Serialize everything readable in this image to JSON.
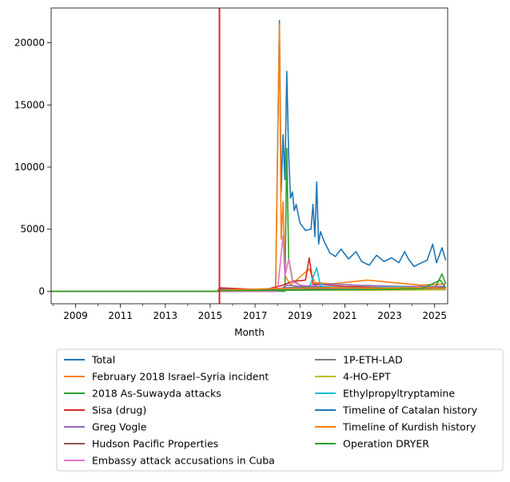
{
  "chart_data": {
    "type": "line",
    "xlabel": "Month",
    "ylabel": "",
    "xlim": [
      "2007-12-01",
      "2025-08-01"
    ],
    "ylim": [
      -1000,
      22800
    ],
    "x_ticks": [
      {
        "label": "2009",
        "date": "2009-01-01"
      },
      {
        "label": "2011",
        "date": "2011-01-01"
      },
      {
        "label": "2013",
        "date": "2013-01-01"
      },
      {
        "label": "2015",
        "date": "2015-01-01"
      },
      {
        "label": "2017",
        "date": "2017-01-01"
      },
      {
        "label": "2019",
        "date": "2019-01-01"
      },
      {
        "label": "2021",
        "date": "2021-01-01"
      },
      {
        "label": "2023",
        "date": "2023-01-01"
      },
      {
        "label": "2025",
        "date": "2025-01-01"
      }
    ],
    "y_ticks": [
      {
        "label": "0",
        "value": 0
      },
      {
        "label": "5000",
        "value": 5000
      },
      {
        "label": "10000",
        "value": 10000
      },
      {
        "label": "15000",
        "value": 15000
      },
      {
        "label": "20000",
        "value": 20000
      }
    ],
    "vline": {
      "date": "2015-06-01",
      "color": "#d62728"
    },
    "legend_position": "below",
    "series": [
      {
        "name": "Total",
        "color": "#1f77b4",
        "points": [
          [
            "2007-12-01",
            0
          ],
          [
            "2015-05-01",
            0
          ],
          [
            "2015-06-01",
            250
          ],
          [
            "2016-06-01",
            100
          ],
          [
            "2017-12-01",
            60
          ],
          [
            "2018-02-01",
            21800
          ],
          [
            "2018-03-01",
            8000
          ],
          [
            "2018-04-01",
            12600
          ],
          [
            "2018-05-01",
            9000
          ],
          [
            "2018-06-01",
            17700
          ],
          [
            "2018-07-01",
            11000
          ],
          [
            "2018-08-01",
            7500
          ],
          [
            "2018-09-01",
            8000
          ],
          [
            "2018-10-01",
            6500
          ],
          [
            "2018-11-01",
            7000
          ],
          [
            "2019-01-01",
            5500
          ],
          [
            "2019-04-01",
            4900
          ],
          [
            "2019-07-01",
            5000
          ],
          [
            "2019-08-01",
            7000
          ],
          [
            "2019-09-01",
            4400
          ],
          [
            "2019-10-01",
            8800
          ],
          [
            "2019-11-01",
            3800
          ],
          [
            "2019-12-01",
            4800
          ],
          [
            "2020-02-01",
            4000
          ],
          [
            "2020-05-01",
            3100
          ],
          [
            "2020-08-01",
            2800
          ],
          [
            "2020-11-01",
            3400
          ],
          [
            "2021-03-01",
            2600
          ],
          [
            "2021-07-01",
            3200
          ],
          [
            "2021-10-01",
            2400
          ],
          [
            "2022-02-01",
            2100
          ],
          [
            "2022-06-01",
            2900
          ],
          [
            "2022-10-01",
            2400
          ],
          [
            "2023-02-01",
            2700
          ],
          [
            "2023-06-01",
            2300
          ],
          [
            "2023-09-01",
            3200
          ],
          [
            "2023-11-01",
            2600
          ],
          [
            "2024-02-01",
            2000
          ],
          [
            "2024-06-01",
            2300
          ],
          [
            "2024-09-01",
            2500
          ],
          [
            "2024-12-01",
            3800
          ],
          [
            "2025-02-01",
            2300
          ],
          [
            "2025-05-01",
            3500
          ],
          [
            "2025-07-01",
            2500
          ]
        ]
      },
      {
        "name": "February 2018 Israel–Syria incident",
        "color": "#ff7f0e",
        "points": [
          [
            "2007-12-01",
            0
          ],
          [
            "2017-12-01",
            0
          ],
          [
            "2018-02-01",
            21500
          ],
          [
            "2018-03-01",
            4200
          ],
          [
            "2018-04-01",
            7200
          ],
          [
            "2018-05-01",
            1300
          ],
          [
            "2018-08-01",
            500
          ],
          [
            "2019-06-01",
            1800
          ],
          [
            "2019-09-01",
            700
          ],
          [
            "2020-06-01",
            600
          ],
          [
            "2022-01-01",
            900
          ],
          [
            "2023-03-01",
            700
          ],
          [
            "2024-06-01",
            500
          ],
          [
            "2025-07-01",
            600
          ]
        ]
      },
      {
        "name": "2018 As-Suwayda attacks",
        "color": "#2ca02c",
        "points": [
          [
            "2007-12-01",
            0
          ],
          [
            "2018-05-01",
            0
          ],
          [
            "2018-06-01",
            11500
          ],
          [
            "2018-07-01",
            2700
          ],
          [
            "2018-09-01",
            900
          ],
          [
            "2019-03-01",
            300
          ],
          [
            "2020-06-01",
            200
          ],
          [
            "2023-01-01",
            150
          ],
          [
            "2025-01-01",
            200
          ],
          [
            "2025-05-01",
            1400
          ],
          [
            "2025-07-01",
            600
          ]
        ]
      },
      {
        "name": "Sisa (drug)",
        "color": "#d62728",
        "points": [
          [
            "2007-12-01",
            0
          ],
          [
            "2015-05-01",
            0
          ],
          [
            "2015-06-01",
            280
          ],
          [
            "2016-06-01",
            200
          ],
          [
            "2017-06-01",
            120
          ],
          [
            "2018-04-01",
            500
          ],
          [
            "2018-09-01",
            800
          ],
          [
            "2019-04-01",
            900
          ],
          [
            "2019-06-01",
            2700
          ],
          [
            "2019-08-01",
            600
          ],
          [
            "2021-01-01",
            400
          ],
          [
            "2023-01-01",
            300
          ],
          [
            "2025-07-01",
            300
          ]
        ]
      },
      {
        "name": "Greg Vogle",
        "color": "#9467bd",
        "points": [
          [
            "2007-12-01",
            0
          ],
          [
            "2018-01-01",
            0
          ],
          [
            "2018-06-01",
            500
          ],
          [
            "2019-01-01",
            400
          ],
          [
            "2020-06-01",
            600
          ],
          [
            "2021-06-01",
            500
          ],
          [
            "2023-06-01",
            400
          ],
          [
            "2025-07-01",
            400
          ]
        ]
      },
      {
        "name": "Hudson Pacific Properties",
        "color": "#8c564b",
        "points": [
          [
            "2007-12-01",
            0
          ],
          [
            "2015-05-01",
            0
          ],
          [
            "2015-06-01",
            120
          ],
          [
            "2017-12-01",
            80
          ],
          [
            "2019-06-01",
            150
          ],
          [
            "2021-06-01",
            120
          ],
          [
            "2023-06-01",
            150
          ],
          [
            "2025-07-01",
            150
          ]
        ]
      },
      {
        "name": "Embassy attack accusations in Cuba",
        "color": "#e377c2",
        "points": [
          [
            "2007-12-01",
            0
          ],
          [
            "2018-01-01",
            0
          ],
          [
            "2018-04-01",
            4500
          ],
          [
            "2018-05-01",
            1200
          ],
          [
            "2018-07-01",
            2600
          ],
          [
            "2018-09-01",
            800
          ],
          [
            "2019-01-01",
            500
          ],
          [
            "2020-06-01",
            300
          ],
          [
            "2022-06-01",
            250
          ],
          [
            "2025-07-01",
            200
          ]
        ]
      },
      {
        "name": "1P-ETH-LAD",
        "color": "#7f7f7f",
        "points": [
          [
            "2007-12-01",
            0
          ],
          [
            "2015-05-01",
            0
          ],
          [
            "2015-06-01",
            150
          ],
          [
            "2017-06-01",
            120
          ],
          [
            "2019-06-01",
            250
          ],
          [
            "2021-06-01",
            200
          ],
          [
            "2023-06-01",
            180
          ],
          [
            "2025-07-01",
            200
          ]
        ]
      },
      {
        "name": "4-HO-EPT",
        "color": "#bcbd22",
        "points": [
          [
            "2007-12-01",
            0
          ],
          [
            "2015-05-01",
            0
          ],
          [
            "2015-06-01",
            60
          ],
          [
            "2019-06-01",
            100
          ],
          [
            "2022-06-01",
            90
          ],
          [
            "2025-07-01",
            120
          ]
        ]
      },
      {
        "name": "Ethylpropyltryptamine",
        "color": "#17becf",
        "points": [
          [
            "2007-12-01",
            0
          ],
          [
            "2015-05-01",
            0
          ],
          [
            "2015-06-01",
            80
          ],
          [
            "2019-06-01",
            300
          ],
          [
            "2019-10-01",
            1900
          ],
          [
            "2019-12-01",
            400
          ],
          [
            "2021-06-01",
            250
          ],
          [
            "2023-06-01",
            350
          ],
          [
            "2025-07-01",
            250
          ]
        ]
      },
      {
        "name": "Timeline of Catalan history",
        "color": "#1f77b4",
        "points": [
          [
            "2007-12-01",
            0
          ],
          [
            "2015-05-01",
            0
          ],
          [
            "2015-06-01",
            100
          ],
          [
            "2017-06-01",
            90
          ],
          [
            "2018-06-01",
            300
          ],
          [
            "2019-06-01",
            350
          ],
          [
            "2021-06-01",
            300
          ],
          [
            "2023-06-01",
            250
          ],
          [
            "2025-07-01",
            300
          ]
        ]
      },
      {
        "name": "Timeline of Kurdish history",
        "color": "#ff7f0e",
        "points": [
          [
            "2007-12-01",
            0
          ],
          [
            "2015-05-01",
            0
          ],
          [
            "2015-06-01",
            100
          ],
          [
            "2018-06-01",
            250
          ],
          [
            "2020-06-01",
            300
          ],
          [
            "2022-06-01",
            250
          ],
          [
            "2024-06-01",
            300
          ],
          [
            "2025-07-01",
            250
          ]
        ]
      },
      {
        "name": "Operation DRYER",
        "color": "#2ca02c",
        "points": [
          [
            "2007-12-01",
            0
          ],
          [
            "2015-05-01",
            0
          ],
          [
            "2015-06-01",
            50
          ],
          [
            "2019-06-01",
            100
          ],
          [
            "2022-06-01",
            150
          ],
          [
            "2024-06-01",
            200
          ],
          [
            "2025-04-01",
            900
          ],
          [
            "2025-07-01",
            300
          ]
        ]
      }
    ]
  }
}
